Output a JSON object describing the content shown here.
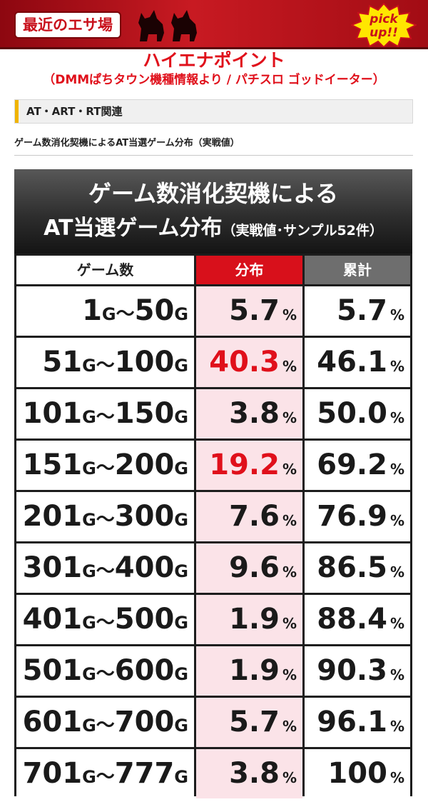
{
  "banner": {
    "label": "最近のエサ場",
    "pickup": [
      "pick",
      "up!!"
    ],
    "colors": {
      "banner": "#c81a22",
      "accent_red": "#e0101b"
    }
  },
  "headline": {
    "title": "ハイエナポイント",
    "source": "（DMMぱちタウン機種情報より / パチスロ ゴッドイーター）"
  },
  "section": {
    "label": "AT・ART・RT関連"
  },
  "caption": "ゲーム数消化契機によるAT当選ゲーム分布（実戦値）",
  "table": {
    "title_line1": "ゲーム数消化契機による",
    "title_line2_main": "AT当選ゲーム分布",
    "title_line2_small": "（実戦値･サンプル52件）",
    "columns": [
      "ゲーム数",
      "分布",
      "累計"
    ],
    "g_unit": "G",
    "range_sep": "～",
    "percent": "%",
    "rows": [
      {
        "from": "1",
        "to": "50",
        "dist": "5.7",
        "cum": "5.7",
        "highlight": false
      },
      {
        "from": "51",
        "to": "100",
        "dist": "40.3",
        "cum": "46.1",
        "highlight": true
      },
      {
        "from": "101",
        "to": "150",
        "dist": "3.8",
        "cum": "50.0",
        "highlight": false
      },
      {
        "from": "151",
        "to": "200",
        "dist": "19.2",
        "cum": "69.2",
        "highlight": true
      },
      {
        "from": "201",
        "to": "300",
        "dist": "7.6",
        "cum": "76.9",
        "highlight": false
      },
      {
        "from": "301",
        "to": "400",
        "dist": "9.6",
        "cum": "86.5",
        "highlight": false
      },
      {
        "from": "401",
        "to": "500",
        "dist": "1.9",
        "cum": "88.4",
        "highlight": false
      },
      {
        "from": "501",
        "to": "600",
        "dist": "1.9",
        "cum": "90.3",
        "highlight": false
      },
      {
        "from": "601",
        "to": "700",
        "dist": "5.7",
        "cum": "96.1",
        "highlight": false
      },
      {
        "from": "701",
        "to": "777",
        "dist": "3.8",
        "cum": "100",
        "highlight": false
      }
    ]
  }
}
